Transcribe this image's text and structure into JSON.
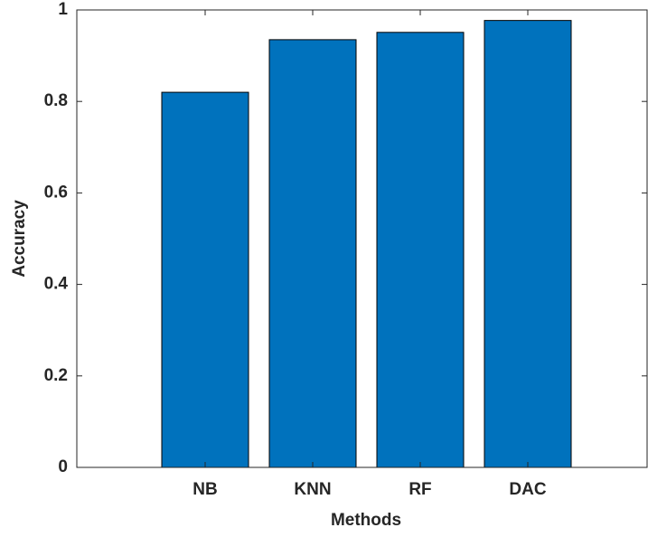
{
  "chart_data": {
    "type": "bar",
    "xlabel": "Methods",
    "ylabel": "Accuracy",
    "categories": [
      "NB",
      "KNN",
      "RF",
      "DAC"
    ],
    "values": [
      0.82,
      0.935,
      0.951,
      0.977
    ],
    "color": "#0072bd",
    "ylim": [
      0,
      1
    ],
    "yticks": [
      0,
      0.2,
      0.4,
      0.6,
      0.8,
      1
    ],
    "grid": false
  }
}
